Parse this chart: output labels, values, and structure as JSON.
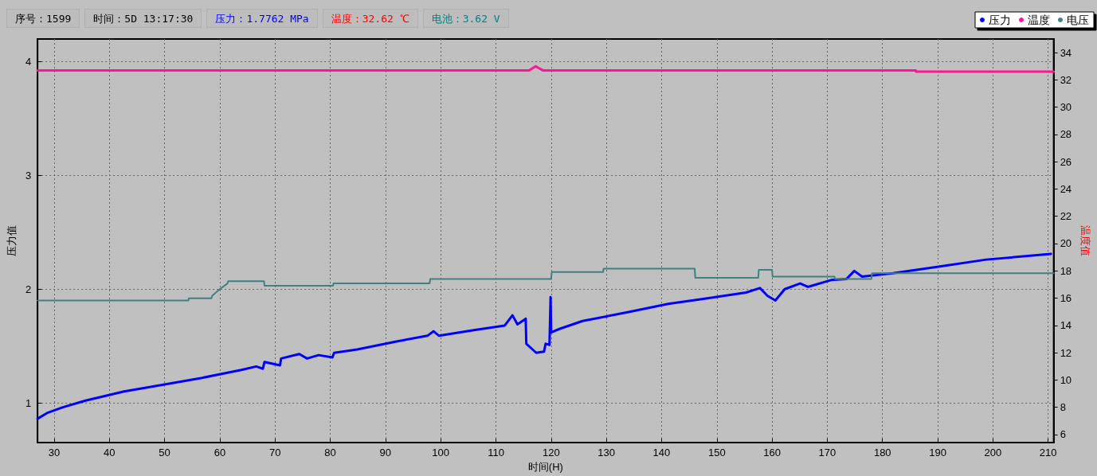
{
  "chart_data": {
    "type": "line",
    "annotations": [
      "序号：1599",
      "时间：5D 13:17:30",
      "压力：1.7762 MPa",
      "温度：32.62 ℃",
      "电池：3.62 V"
    ],
    "xlabel": "时间(H)",
    "ylabel": "压力值",
    "y2label": "温度值",
    "xlim": [
      27,
      211
    ],
    "xticks": [
      30,
      40,
      50,
      60,
      70,
      80,
      90,
      100,
      110,
      120,
      130,
      140,
      150,
      160,
      170,
      180,
      190,
      200,
      210
    ],
    "ylim": [
      0.65,
      4.2
    ],
    "yticks": [
      1,
      2,
      3,
      4
    ],
    "y2lim": [
      5.4,
      35
    ],
    "y2ticks": [
      6,
      8,
      10,
      12,
      14,
      16,
      18,
      20,
      22,
      24,
      26,
      28,
      30,
      32,
      34
    ],
    "grid": true,
    "legend": "top right",
    "marker": "none",
    "line_style": "solid",
    "series": [
      {
        "name": "压力",
        "color": "#0000ff",
        "x": [
          27,
          28.7,
          31.5,
          35.7,
          42.7,
          49.8,
          56.8,
          63.9,
          66.6,
          67.8,
          68.1,
          70.9,
          71.1,
          74.4,
          75.8,
          77.9,
          80.4,
          80.7,
          84.9,
          92,
          97.6,
          98.7,
          99.7,
          106,
          111.6,
          113,
          113.9,
          115.4,
          115.5,
          117.3,
          118.7,
          119,
          119.7,
          119.9,
          120,
          121.5,
          125.7,
          134.2,
          141.2,
          148.3,
          155.3,
          157.8,
          159.2,
          160.6,
          162.3,
          165.1,
          166.5,
          170.7,
          173.5,
          174.9,
          176.3,
          181.9,
          190.4,
          198.8,
          210.5
        ],
        "values": [
          0.86,
          0.91,
          0.96,
          1.02,
          1.1,
          1.16,
          1.22,
          1.29,
          1.32,
          1.3,
          1.36,
          1.33,
          1.39,
          1.43,
          1.39,
          1.42,
          1.4,
          1.44,
          1.47,
          1.54,
          1.59,
          1.63,
          1.59,
          1.64,
          1.68,
          1.77,
          1.69,
          1.74,
          1.52,
          1.44,
          1.45,
          1.52,
          1.51,
          1.93,
          1.62,
          1.65,
          1.72,
          1.8,
          1.87,
          1.92,
          1.97,
          2.01,
          1.94,
          1.9,
          2.0,
          2.05,
          2.02,
          2.08,
          2.09,
          2.16,
          2.11,
          2.14,
          2.2,
          2.26,
          2.31
        ]
      },
      {
        "name": "温度",
        "color": "#ff1493",
        "axis": "y2",
        "x": [
          27,
          63,
          63.1,
          116,
          117.2,
          118.5,
          168,
          169,
          186,
          186.1,
          211
        ],
        "values": [
          32.7,
          32.7,
          32.7,
          32.7,
          33.0,
          32.7,
          32.7,
          32.7,
          32.7,
          32.6,
          32.6
        ]
      },
      {
        "name": "电压",
        "color": "#408080",
        "x": [
          27,
          54.3,
          54.4,
          58.5,
          58.6,
          60,
          61.4,
          61.5,
          68,
          68.1,
          80.5,
          80.6,
          98,
          98.1,
          120,
          120.1,
          129.4,
          129.5,
          146,
          146.1,
          157.5,
          157.6,
          160,
          160.1,
          171.3,
          171.4,
          178,
          178.1,
          211
        ],
        "values": [
          1.9,
          1.9,
          1.92,
          1.92,
          1.94,
          2.0,
          2.05,
          2.07,
          2.07,
          2.03,
          2.03,
          2.05,
          2.05,
          2.09,
          2.09,
          2.15,
          2.15,
          2.18,
          2.18,
          2.1,
          2.1,
          2.17,
          2.17,
          2.11,
          2.11,
          2.09,
          2.09,
          2.14,
          2.14
        ]
      }
    ]
  }
}
